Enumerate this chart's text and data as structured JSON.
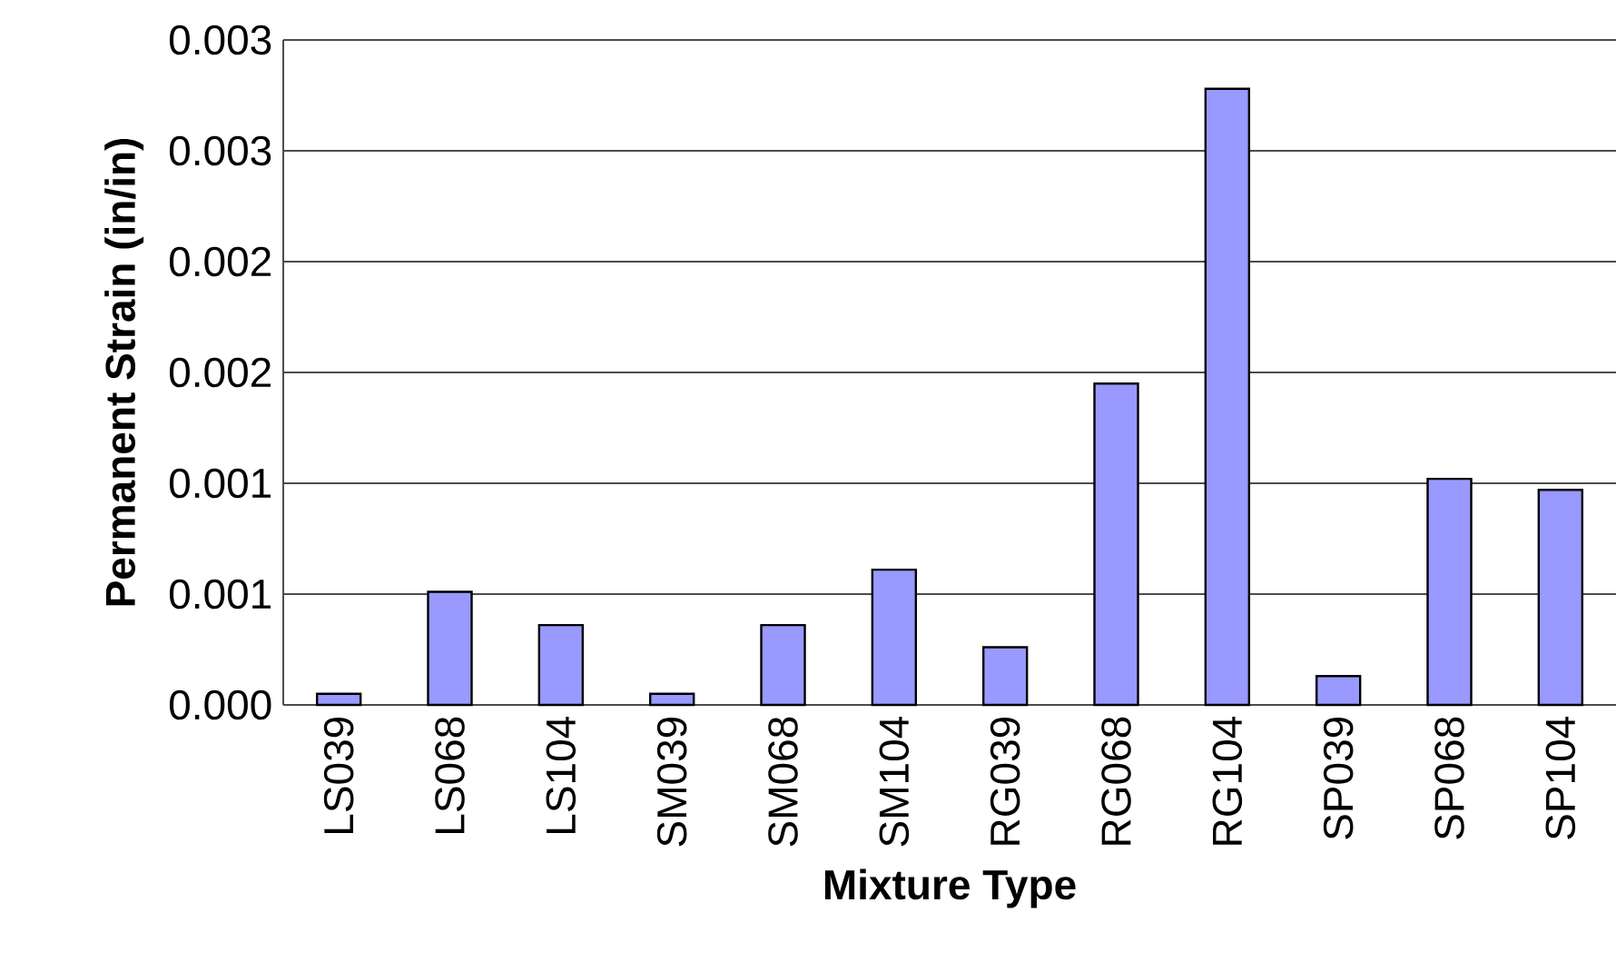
{
  "chart_data": {
    "type": "bar",
    "xlabel": "Mixture Type",
    "ylabel": "Permanent Strain (in/in)",
    "categories": [
      "LS039",
      "LS068",
      "LS104",
      "SM039",
      "SM068",
      "SM104",
      "RG039",
      "RG068",
      "RG104",
      "SP039",
      "SP068",
      "SP104"
    ],
    "values": [
      5e-05,
      0.00051,
      0.00036,
      5e-05,
      0.00036,
      0.00061,
      0.00026,
      0.00145,
      0.00278,
      0.00013,
      0.00102,
      0.00097
    ],
    "color": "#9999ff",
    "ylim": [
      0,
      0.003
    ],
    "yticks": [
      {
        "value": 0,
        "label": "0.000"
      },
      {
        "value": 0.0005,
        "label": "0.001"
      },
      {
        "value": 0.001,
        "label": "0.001"
      },
      {
        "value": 0.0015,
        "label": "0.002"
      },
      {
        "value": 0.002,
        "label": "0.002"
      },
      {
        "value": 0.0025,
        "label": "0.003"
      },
      {
        "value": 0.003,
        "label": "0.003"
      }
    ],
    "grid": "y"
  }
}
